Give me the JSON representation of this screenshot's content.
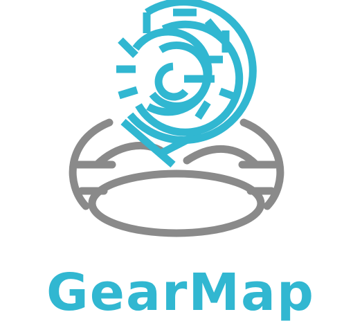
{
  "brand": {
    "name": "GearMap",
    "primary_color": "#31b7d1",
    "secondary_color": "#8a8a8a",
    "mark_icon": "maze-map-pin-icon",
    "base_icon": "ring-base-icon"
  }
}
